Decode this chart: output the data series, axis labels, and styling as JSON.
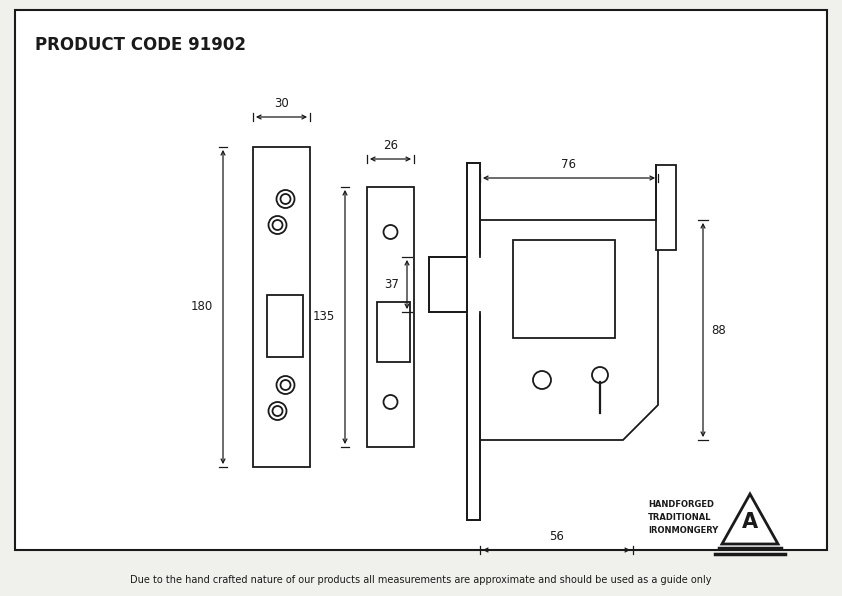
{
  "title": "PRODUCT CODE 91902",
  "footer": "Due to the hand crafted nature of our products all measurements are approximate and should be used as a guide only",
  "bg_color": "#f0f0ec",
  "panel_color": "#ffffff",
  "line_color": "#1a1a1a",
  "logo_text1": "HANDFORGED",
  "logo_text2": "TRADITIONAL",
  "logo_text3": "IRONMONGERY",
  "fig_w": 8.42,
  "fig_h": 5.96,
  "dpi": 100
}
